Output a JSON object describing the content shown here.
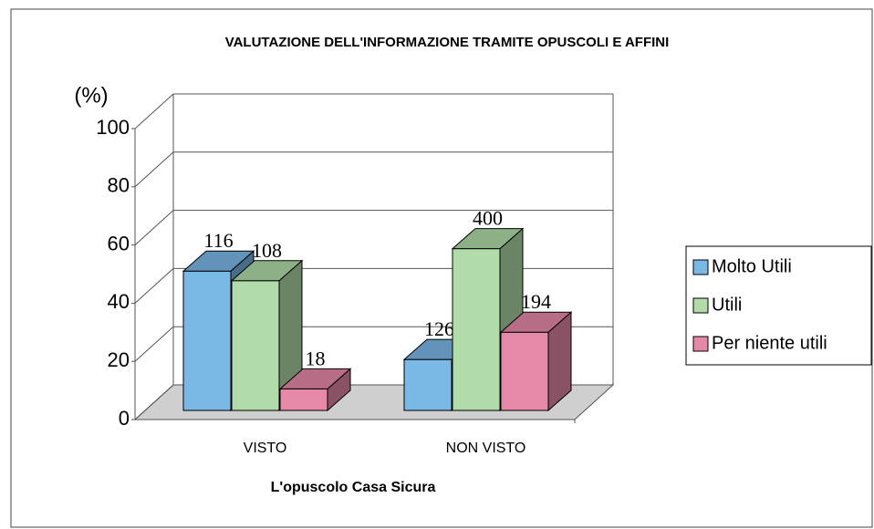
{
  "chart_data": {
    "type": "bar3d",
    "title": "VALUTAZIONE DELL'INFORMAZIONE TRAMITE OPUSCOLI E AFFINI",
    "y_label": "(%)",
    "x_label": "L'opuscolo Casa Sicura",
    "categories": [
      "VISTO",
      "NON VISTO"
    ],
    "series": [
      {
        "name": "Molto Utili",
        "color": "#7ab8e6",
        "values": [
          47.9,
          17.5
        ],
        "counts": [
          116,
          126
        ]
      },
      {
        "name": "Utili",
        "color": "#b1dca9",
        "values": [
          44.6,
          55.6
        ],
        "counts": [
          108,
          400
        ]
      },
      {
        "name": "Per niente utili",
        "color": "#e688a8",
        "values": [
          7.4,
          26.9
        ],
        "counts": [
          18,
          194
        ]
      }
    ],
    "ylim": [
      0,
      100
    ],
    "yticks": [
      0,
      20,
      40,
      60,
      80,
      100
    ],
    "grid": true,
    "legend": "right"
  }
}
